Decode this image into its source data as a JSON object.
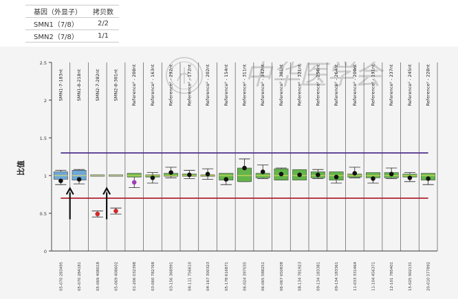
{
  "table": {
    "headers": [
      "基因（外显子）",
      "拷贝数"
    ],
    "rows": [
      [
        "SMN1（7/8）",
        "2/2"
      ],
      [
        "SMN2（7/8）",
        "1/1"
      ]
    ]
  },
  "colors": {
    "upper_line": "#4b2c8a",
    "lower_line": "#b02030",
    "target_box": "#6fa8d6",
    "reference_box": "#63b54a",
    "point": "#111111",
    "low_point": "#d42626",
    "purple_point": "#a03cb8"
  },
  "watermark": "中华医学会",
  "chart_data": {
    "type": "box",
    "ylabel": "比值",
    "ylim": [
      0,
      2.5
    ],
    "yticks": [
      "0",
      "0.5",
      "1",
      "1.5",
      "2",
      "2.5"
    ],
    "upper_threshold": 1.3,
    "lower_threshold": 0.7,
    "probes": [
      {
        "label": "SMN1-7-183nt",
        "sample": "05-070 283495",
        "group": "target",
        "value": 0.93,
        "box": [
          0.95,
          1.05
        ],
        "whisker": [
          0.88,
          1.07
        ]
      },
      {
        "label": "SMN1-8-218nt",
        "sample": "05-070 284181",
        "group": "target",
        "value": 0.95,
        "box": [
          0.94,
          1.07
        ],
        "whisker": [
          0.89,
          1.08
        ]
      },
      {
        "label": "SMN2-7-282nt",
        "sample": "05-069 408018",
        "group": "target",
        "value": 0.49,
        "box": [
          0.99,
          1.01
        ],
        "whisker": [
          0.45,
          0.53
        ],
        "point": "low"
      },
      {
        "label": "SMN2-8-301nt",
        "sample": "05-069 408602",
        "group": "target",
        "value": 0.53,
        "box": [
          0.99,
          1.01
        ],
        "whisker": [
          0.49,
          0.57
        ],
        "point": "low"
      },
      {
        "label": "Reference² - 208nt",
        "sample": "01-206 032398",
        "group": "reference",
        "value": 0.91,
        "box": [
          0.98,
          1.03
        ],
        "whisker": [
          0.84,
          1.02
        ],
        "point": "purple"
      },
      {
        "label": "Reference² - 163nt",
        "sample": "03-060 782768",
        "group": "reference",
        "value": 0.97,
        "box": [
          0.98,
          1.01
        ],
        "whisker": [
          0.9,
          1.04
        ]
      },
      {
        "label": "Reference² - 292nt",
        "sample": "03-156 368991",
        "group": "reference",
        "value": 1.04,
        "box": [
          0.99,
          1.03
        ],
        "whisker": [
          0.97,
          1.11
        ]
      },
      {
        "label": "Reference² - 172nt",
        "sample": "04-111 756610",
        "group": "reference",
        "value": 1.01,
        "box": [
          0.99,
          1.02
        ],
        "whisker": [
          0.96,
          1.07
        ]
      },
      {
        "label": "Reference² - 202nt",
        "sample": "04-167 300323",
        "group": "reference",
        "value": 1.02,
        "box": [
          0.99,
          1.01
        ],
        "whisker": [
          0.95,
          1.09
        ]
      },
      {
        "label": "Reference² - 154nt",
        "sample": "05-178 616871",
        "group": "reference",
        "value": 0.95,
        "box": [
          0.94,
          1.03
        ],
        "whisker": [
          0.88,
          1.02
        ]
      },
      {
        "label": "Reference² - 311nt",
        "sample": "06-024 397035",
        "group": "reference",
        "value": 1.1,
        "box": [
          0.92,
          1.1
        ],
        "whisker": [
          0.92,
          1.22
        ]
      },
      {
        "label": "Reference² - 342nt",
        "sample": "06-065 588251",
        "group": "reference",
        "value": 1.05,
        "box": [
          0.97,
          1.03
        ],
        "whisker": [
          0.96,
          1.14
        ]
      },
      {
        "label": "Reference² - 301nt",
        "sample": "06-067 650838",
        "group": "reference",
        "value": 1.02,
        "box": [
          0.94,
          1.09
        ],
        "whisker": [
          0.94,
          1.1
        ]
      },
      {
        "label": "Reference² - 321nt",
        "sample": "08-134 781923",
        "group": "reference",
        "value": 1.01,
        "box": [
          0.94,
          1.08
        ],
        "whisker": [
          0.95,
          1.07
        ]
      },
      {
        "label": "Reference² - 256nt",
        "sample": "09-134 183381",
        "group": "reference",
        "value": 1.01,
        "box": [
          0.97,
          1.05
        ],
        "whisker": [
          0.96,
          1.08
        ]
      },
      {
        "label": "Reference² - 264nt",
        "sample": "09-134 183361",
        "group": "reference",
        "value": 0.98,
        "box": [
          0.94,
          1.05
        ],
        "whisker": [
          0.9,
          1.04
        ]
      },
      {
        "label": "Reference² - 200nt",
        "sample": "11-033 331464",
        "group": "reference",
        "value": 1.03,
        "box": [
          0.98,
          1.02
        ],
        "whisker": [
          0.97,
          1.11
        ]
      },
      {
        "label": "Reference² - 191nt",
        "sample": "11-104 456371",
        "group": "reference",
        "value": 0.96,
        "box": [
          0.97,
          1.04
        ],
        "whisker": [
          0.9,
          1.03
        ]
      },
      {
        "label": "Reference² - 237nt",
        "sample": "12-101 785401",
        "group": "reference",
        "value": 1.02,
        "box": [
          0.97,
          1.04
        ],
        "whisker": [
          0.96,
          1.1
        ]
      },
      {
        "label": "Reference² - 245nt",
        "sample": "15-025 902131",
        "group": "reference",
        "value": 0.97,
        "box": [
          0.98,
          1.02
        ],
        "whisker": [
          0.92,
          1.04
        ]
      },
      {
        "label": "Reference² - 228nt",
        "sample": "20-010 577892",
        "group": "reference",
        "value": 0.96,
        "box": [
          0.94,
          1.03
        ],
        "whisker": [
          0.88,
          1.01
        ]
      }
    ],
    "arrows_at": [
      1,
      3
    ]
  }
}
